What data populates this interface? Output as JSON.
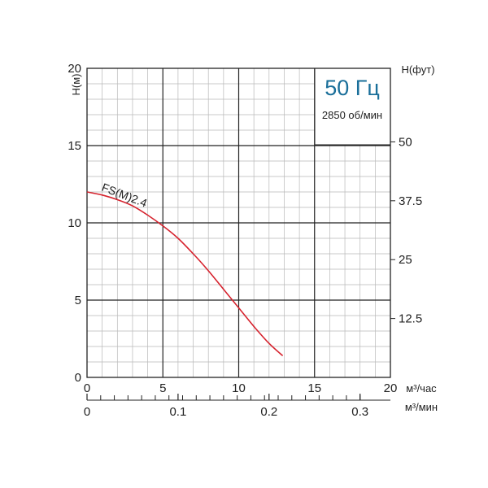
{
  "chart_data": {
    "type": "line",
    "curve_color": "#d6232e",
    "freq_color": "#1a6f9a",
    "y_left": {
      "label": "H(м)",
      "range": [
        0,
        20
      ],
      "ticks": [
        "0",
        "5",
        "10",
        "15",
        "20"
      ]
    },
    "y_right": {
      "label": "H(фут)",
      "ticks": [
        "12.5",
        "25",
        "37.5",
        "50"
      ],
      "tick_values_m": [
        3.81,
        7.62,
        11.43,
        15.24
      ]
    },
    "x_top": {
      "unit": "м³/час",
      "range": [
        0,
        20
      ],
      "ticks": [
        "0",
        "5",
        "10",
        "15",
        "20"
      ]
    },
    "x_bottom": {
      "unit": "м³/мин",
      "ticks": [
        "0",
        "0.1",
        "0.2",
        "0.3"
      ],
      "tick_values_m3h": [
        0,
        6,
        12,
        18
      ]
    },
    "info": {
      "frequency": "50 Гц",
      "speed": "2850 об/мин"
    },
    "series": [
      {
        "name": "FS(M)2.4",
        "x": [
          0,
          1,
          2,
          3,
          4,
          5,
          6,
          7,
          8,
          9,
          10,
          11,
          12,
          12.9
        ],
        "y": [
          12.0,
          11.8,
          11.5,
          11.1,
          10.5,
          9.8,
          9.0,
          8.0,
          6.9,
          5.7,
          4.5,
          3.3,
          2.2,
          1.4
        ]
      }
    ]
  }
}
